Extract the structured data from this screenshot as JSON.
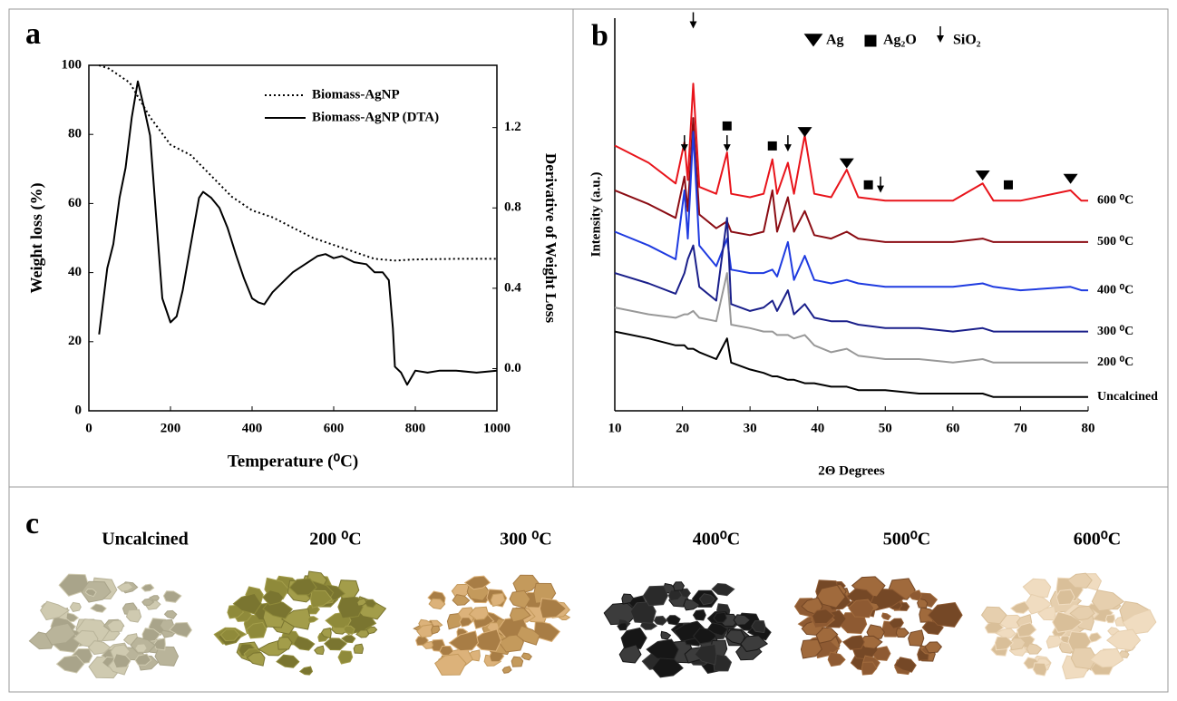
{
  "chart_data": [
    {
      "type": "line",
      "label": "a",
      "xlabel": "Temperature (⁰C)",
      "ylabel": "Weight loss (%)",
      "y2label": "Derivative of Weight Loss",
      "xlim": [
        0,
        1000
      ],
      "xticks": [
        0,
        200,
        400,
        600,
        800,
        1000
      ],
      "ylim": [
        0,
        100
      ],
      "yticks": [
        0,
        20,
        40,
        60,
        80,
        100
      ],
      "y2lim": [
        -0.21,
        1.51
      ],
      "y2ticks": [
        {
          "value": 0,
          "label": "0.0"
        },
        0.4,
        0.8,
        1.2
      ],
      "grid": false,
      "series": [
        {
          "name": "Biomass-AgNP",
          "color": "#000000",
          "style": "dotted",
          "x": [
            25,
            50,
            100,
            150,
            200,
            250,
            300,
            350,
            400,
            450,
            500,
            550,
            600,
            650,
            700,
            750,
            800,
            900,
            1000
          ],
          "values": [
            100,
            99,
            95,
            85,
            77,
            74,
            68,
            62,
            58,
            56,
            53,
            50,
            48,
            46,
            44,
            43.5,
            43.8,
            44,
            44
          ]
        },
        {
          "name": "Biomass-AgNP (DTA)",
          "color": "#000000",
          "style": "solid",
          "axis": "y2",
          "x": [
            25,
            45,
            60,
            75,
            90,
            105,
            120,
            135,
            150,
            165,
            180,
            200,
            215,
            230,
            250,
            270,
            280,
            300,
            320,
            340,
            360,
            380,
            400,
            415,
            430,
            450,
            470,
            500,
            530,
            560,
            580,
            600,
            620,
            650,
            680,
            700,
            720,
            735,
            745,
            750,
            765,
            780,
            800,
            830,
            860,
            900,
            950,
            1000
          ],
          "values": [
            0.17,
            0.5,
            0.62,
            0.85,
            1.0,
            1.25,
            1.43,
            1.3,
            1.16,
            0.75,
            0.35,
            0.23,
            0.26,
            0.39,
            0.62,
            0.85,
            0.88,
            0.85,
            0.8,
            0.7,
            0.57,
            0.45,
            0.35,
            0.33,
            0.32,
            0.38,
            0.42,
            0.48,
            0.52,
            0.56,
            0.57,
            0.55,
            0.56,
            0.53,
            0.52,
            0.48,
            0.48,
            0.44,
            0.2,
            0.01,
            -0.02,
            -0.08,
            -0.01,
            -0.02,
            -0.01,
            -0.01,
            -0.02,
            -0.01
          ]
        }
      ]
    },
    {
      "type": "line",
      "label": "b",
      "xlabel": "2Θ Degrees",
      "ylabel": "Intensity (a.u.)",
      "xlim": [
        10,
        80
      ],
      "xticks": [
        10,
        20,
        30,
        40,
        50,
        60,
        70,
        80
      ],
      "ylim": [
        0,
        114
      ],
      "grid": false,
      "x": [
        10,
        15,
        19,
        20.3,
        20.8,
        21.6,
        22.5,
        25,
        26.6,
        27.2,
        30,
        32,
        33.3,
        34,
        35.6,
        36.5,
        38.1,
        39.5,
        42,
        44.3,
        46,
        50,
        55,
        60,
        64.4,
        66,
        70,
        77.4,
        79,
        80
      ],
      "series": [
        {
          "name": "600 ⁰C",
          "color": "#e8141b",
          "values": [
            77,
            72,
            66,
            78,
            67,
            95,
            65,
            63,
            75,
            63,
            62,
            63,
            73,
            63,
            72,
            63,
            80,
            63,
            62,
            70,
            62,
            61,
            61,
            61,
            66,
            61,
            61,
            64,
            61,
            61
          ]
        },
        {
          "name": "500 ⁰C",
          "color": "#8b0d14",
          "values": [
            64,
            60,
            56,
            68,
            58,
            85,
            57,
            53,
            55,
            52,
            51,
            52,
            64,
            52,
            62,
            52,
            58,
            51,
            50,
            52,
            50,
            49,
            49,
            49,
            50,
            49,
            49,
            49,
            49,
            49
          ]
        },
        {
          "name": "400 ⁰C",
          "color": "#1f3be0",
          "values": [
            52,
            48,
            44,
            64,
            50,
            81,
            48,
            42,
            50,
            41,
            40,
            40,
            41,
            39,
            49,
            38,
            45,
            38,
            37,
            38,
            37,
            36,
            36,
            36,
            37,
            36,
            35,
            36,
            35,
            35
          ]
        },
        {
          "name": "300 ⁰C",
          "color": "#1a1f8a",
          "values": [
            40,
            37,
            34,
            40,
            44,
            48,
            36,
            32,
            56,
            31,
            29,
            30,
            32,
            29,
            35,
            28,
            31,
            27,
            26,
            26,
            25,
            24,
            24,
            23,
            24,
            23,
            23,
            23,
            23,
            23
          ]
        },
        {
          "name": "200 ⁰C",
          "color": "#999999",
          "values": [
            30,
            28,
            27,
            28,
            28,
            29,
            27,
            26,
            40,
            25,
            24,
            23,
            23,
            22,
            22,
            21,
            22,
            19,
            17,
            18,
            16,
            15,
            15,
            14,
            15,
            14,
            14,
            14,
            14,
            14
          ]
        },
        {
          "name": "Uncalcined",
          "color": "#000000",
          "values": [
            23,
            21,
            19,
            19,
            18,
            18,
            17,
            15,
            21,
            14,
            12,
            11,
            10,
            10,
            9,
            9,
            8,
            8,
            7,
            7,
            6,
            6,
            5,
            5,
            5,
            4,
            4,
            4,
            4,
            4
          ]
        }
      ],
      "phases": [
        {
          "name": "Ag",
          "marker": "triangle",
          "x": [
            38.1,
            44.3,
            64.4,
            77.4
          ],
          "y": [
            80.8,
            71.7,
            68.2,
            67.2
          ]
        },
        {
          "name": "Ag₂O",
          "marker": "square",
          "x": [
            26.6,
            33.3,
            47.5,
            68.2
          ],
          "y": [
            82.7,
            76.9,
            65.6,
            65.6
          ]
        },
        {
          "name": "SiO₂",
          "marker": "arrow",
          "x": [
            20.3,
            21.6,
            26.6,
            35.6,
            49.3
          ],
          "y": [
            75.8,
            111.5,
            75.8,
            75.8,
            63.8
          ]
        }
      ]
    }
  ],
  "photos": {
    "label": "c",
    "items": [
      "Uncalcined",
      "200 ⁰C",
      "300 ⁰C",
      "400⁰C",
      "500⁰C",
      "600⁰C"
    ]
  }
}
